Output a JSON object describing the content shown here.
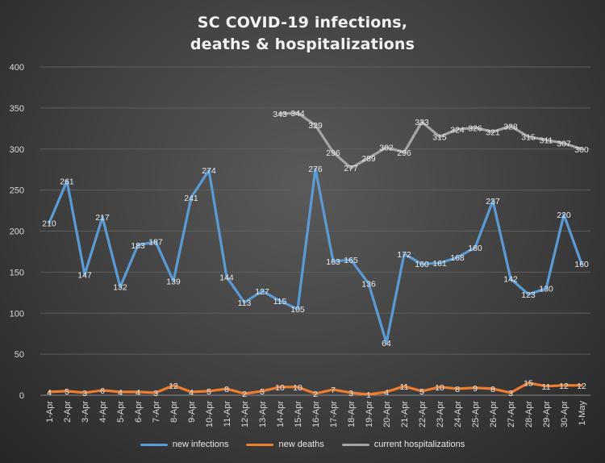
{
  "chart_data": {
    "type": "line",
    "title_lines": [
      "SC COVID-19 infections,",
      "deaths & hospitalizations"
    ],
    "categories": [
      "1-Apr",
      "2-Apr",
      "3-Apr",
      "4-Apr",
      "5-Apr",
      "6-Apr",
      "7-Apr",
      "8-Apr",
      "9-Apr",
      "10-Apr",
      "11-Apr",
      "12-Apr",
      "13-Apr",
      "14-Apr",
      "15-Apr",
      "16-Apr",
      "17-Apr",
      "18-Apr",
      "19-Apr",
      "20-Apr",
      "21-Apr",
      "22-Apr",
      "23-Apr",
      "24-Apr",
      "25-Apr",
      "26-Apr",
      "27-Apr",
      "28-Apr",
      "29-Apr",
      "30-Apr",
      "1-May"
    ],
    "ylim": [
      0,
      400
    ],
    "yticks": [
      0,
      50,
      100,
      150,
      200,
      250,
      300,
      350,
      400
    ],
    "grid": true,
    "legend_position": "bottom",
    "series": [
      {
        "name": "new infections",
        "color": "#5b9bd5",
        "values": [
          210,
          261,
          147,
          217,
          132,
          183,
          187,
          139,
          241,
          274,
          144,
          113,
          127,
          115,
          105,
          276,
          163,
          165,
          136,
          64,
          172,
          160,
          161,
          168,
          180,
          237,
          142,
          123,
          130,
          220,
          160
        ]
      },
      {
        "name": "new deaths",
        "color": "#ed7d31",
        "values": [
          4,
          5,
          3,
          6,
          4,
          4,
          3,
          12,
          4,
          5,
          8,
          2,
          5,
          10,
          10,
          2,
          7,
          3,
          1,
          4,
          11,
          5,
          10,
          8,
          9,
          8,
          3,
          15,
          11,
          12,
          12
        ]
      },
      {
        "name": "current hospitalizations",
        "color": "#a5a5a5",
        "values": [
          null,
          null,
          null,
          null,
          null,
          null,
          null,
          null,
          null,
          null,
          null,
          null,
          null,
          343,
          344,
          329,
          296,
          277,
          289,
          302,
          296,
          333,
          315,
          324,
          326,
          321,
          328,
          315,
          311,
          307,
          300
        ]
      }
    ]
  }
}
